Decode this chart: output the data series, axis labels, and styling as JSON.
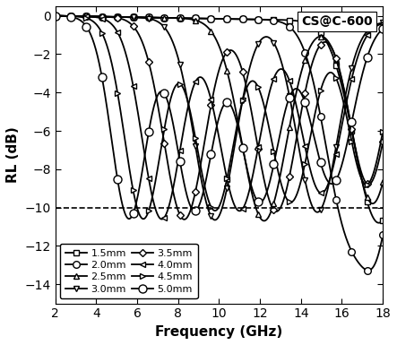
{
  "title": "CS@C-600",
  "xlabel": "Frequency (GHz)",
  "ylabel": "RL (dB)",
  "xlim": [
    2,
    18
  ],
  "ylim": [
    -15,
    0.5
  ],
  "yticks": [
    0,
    -2,
    -4,
    -6,
    -8,
    -10,
    -12,
    -14
  ],
  "xticks": [
    2,
    4,
    6,
    8,
    10,
    12,
    14,
    16,
    18
  ],
  "dashed_line_y": -10,
  "series": [
    {
      "label": "1.5mm",
      "marker": "s",
      "ms": 4.5,
      "color": "black",
      "d": 1.5,
      "lw": 1.3
    },
    {
      "label": "2.0mm",
      "marker": "o",
      "ms": 5.5,
      "color": "black",
      "d": 2.0,
      "lw": 1.3
    },
    {
      "label": "2.5mm",
      "marker": "^",
      "ms": 4.5,
      "color": "black",
      "d": 2.5,
      "lw": 1.3
    },
    {
      "label": "3.0mm",
      "marker": "v",
      "ms": 4.5,
      "color": "black",
      "d": 3.0,
      "lw": 1.3
    },
    {
      "label": "3.5mm",
      "marker": "D",
      "ms": 4.0,
      "color": "black",
      "d": 3.5,
      "lw": 1.3
    },
    {
      "label": "4.0mm",
      "marker": "<",
      "ms": 4.5,
      "color": "black",
      "d": 4.0,
      "lw": 1.3
    },
    {
      "label": "4.5mm",
      "marker": ">",
      "ms": 4.5,
      "color": "black",
      "d": 4.5,
      "lw": 1.3
    },
    {
      "label": "5.0mm",
      "marker": "o",
      "ms": 6.5,
      "color": "black",
      "d": 5.0,
      "lw": 1.3
    }
  ],
  "legend_cols": 2,
  "background_color": "white",
  "figsize": [
    4.43,
    3.85
  ],
  "dpi": 100
}
